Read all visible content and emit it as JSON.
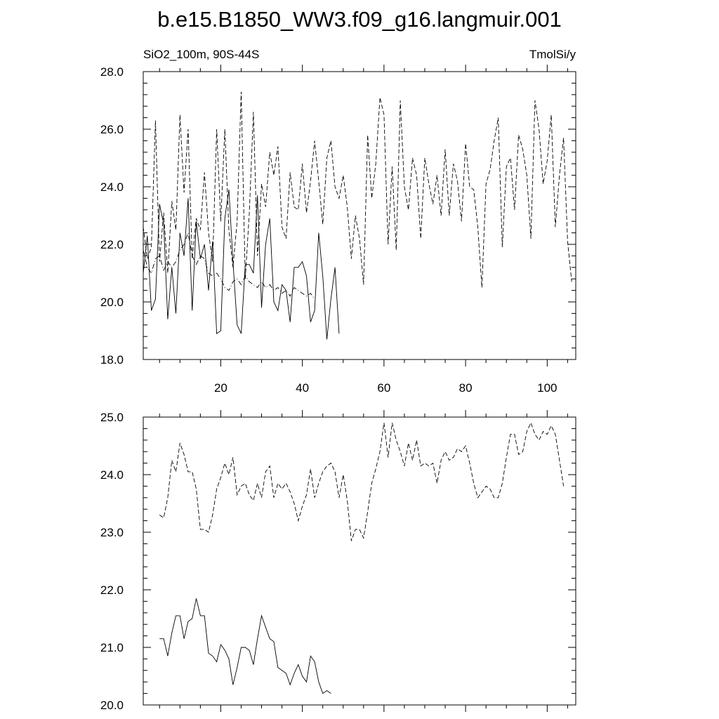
{
  "title": "b.e15.B1850_WW3.f09_g16.langmuir.001",
  "chart_data": [
    {
      "type": "line",
      "left_label": "SiO2_100m, 90S-44S",
      "right_label": "TmolSi/y",
      "xlim": [
        1,
        107
      ],
      "ylim": [
        18,
        28
      ],
      "xticks": [
        20,
        40,
        60,
        80,
        100
      ],
      "xtick_labels": [
        "20",
        "40",
        "60",
        "80",
        "100"
      ],
      "yticks": [
        18,
        20,
        22,
        24,
        26,
        28
      ],
      "ytick_labels": [
        "18.0",
        "20.0",
        "22.0",
        "24.0",
        "26.0",
        "28.0"
      ],
      "grid": false,
      "series": [
        {
          "style": "solid",
          "x_start": 1,
          "values": [
            21.0,
            22.3,
            19.7,
            20.1,
            23.4,
            22.7,
            19.4,
            21.2,
            19.6,
            22.4,
            21.6,
            23.6,
            19.7,
            22.8,
            21.5,
            22.0,
            20.4,
            22.1,
            18.9,
            19.0,
            22.9,
            23.9,
            21.4,
            19.2,
            18.9,
            21.3,
            21.3,
            21.0,
            23.7,
            19.8,
            22.0,
            22.9,
            20.0,
            19.7,
            20.6,
            20.4,
            19.3,
            21.2,
            21.2,
            21.4,
            20.9,
            19.3,
            19.7,
            22.4,
            20.9,
            18.7,
            20.1,
            21.2,
            18.9
          ]
        },
        {
          "style": "dashed",
          "x_start": 1,
          "values": [
            22.6,
            21.5,
            21.9,
            26.3,
            21.4,
            23.1,
            21.0,
            23.5,
            22.5,
            26.5,
            23.8,
            26.0,
            21.5,
            22.9,
            22.5,
            24.5,
            22.4,
            21.4,
            26.0,
            22.8,
            26.0,
            22.5,
            21.2,
            22.8,
            27.3,
            20.8,
            23.1,
            26.6,
            21.6,
            24.1,
            23.3,
            25.2,
            24.4,
            25.4,
            22.6,
            22.2,
            24.5,
            23.3,
            23.2,
            24.8,
            23.1,
            24.2,
            25.6,
            24.2,
            22.7,
            25.0,
            25.6,
            24.0,
            23.6,
            24.4,
            23.3,
            21.5,
            23.0,
            22.2,
            20.6,
            25.8,
            23.6,
            24.8,
            27.1,
            26.5,
            22.0,
            24.7,
            21.8,
            27.0,
            24.0,
            23.2,
            25.0,
            24.4,
            22.2,
            25.0,
            24.1,
            23.4,
            24.4,
            23.0,
            25.3,
            23.0,
            24.8,
            24.2,
            22.8,
            25.5,
            24.0,
            23.9,
            22.6,
            20.5,
            24.1,
            24.6,
            25.6,
            26.4,
            21.9,
            24.7,
            25.0,
            23.2,
            25.8,
            25.3,
            24.4,
            22.2,
            27.0,
            26.0,
            24.1,
            24.9,
            26.5,
            22.6,
            24.4,
            25.7,
            22.1,
            20.7
          ]
        },
        {
          "style": "dash-dot",
          "x_start": 1,
          "values": [
            21.8,
            21.2,
            21.0,
            21.5,
            21.6,
            21.1,
            21.4,
            21.2,
            21.4,
            21.8,
            22.0,
            22.4,
            21.6,
            21.3,
            21.6,
            21.5,
            21.0,
            20.9,
            21.0,
            20.8,
            20.5,
            20.4,
            20.7,
            20.8,
            20.6,
            20.9,
            20.7,
            20.6,
            20.5,
            20.7,
            20.5,
            20.6,
            20.4,
            20.5,
            20.3,
            20.4,
            20.2,
            20.5,
            20.4,
            20.3,
            20.2,
            20.3,
            20.1
          ]
        }
      ]
    },
    {
      "type": "line",
      "xlim": [
        1,
        107
      ],
      "ylim": [
        20,
        25
      ],
      "xticks": [
        20,
        40,
        60,
        80,
        100
      ],
      "yticks": [
        20,
        21,
        22,
        23,
        24,
        25
      ],
      "ytick_labels": [
        "20.0",
        "21.0",
        "22.0",
        "23.0",
        "24.0",
        "25.0"
      ],
      "grid": false,
      "series": [
        {
          "style": "dashed",
          "x_start": 5,
          "values": [
            23.3,
            23.25,
            23.6,
            24.25,
            24.05,
            24.55,
            24.35,
            24.05,
            24.05,
            23.75,
            23.05,
            23.05,
            23.0,
            23.3,
            23.75,
            23.95,
            24.2,
            24.0,
            24.3,
            23.65,
            23.8,
            23.85,
            23.65,
            23.55,
            23.85,
            23.6,
            24.05,
            24.15,
            23.6,
            23.85,
            23.75,
            23.85,
            23.7,
            23.5,
            23.2,
            23.45,
            23.65,
            24.1,
            23.6,
            23.85,
            24.05,
            24.15,
            24.2,
            24.05,
            23.6,
            24.0,
            23.55,
            22.85,
            23.05,
            23.05,
            22.9,
            23.35,
            23.85,
            24.1,
            24.4,
            24.9,
            24.3,
            24.9,
            24.6,
            24.4,
            24.15,
            24.55,
            24.25,
            24.6,
            24.15,
            24.2,
            24.15,
            24.2,
            23.85,
            24.25,
            24.4,
            24.25,
            24.3,
            24.45,
            24.4,
            24.5,
            24.2,
            23.85,
            23.6,
            23.7,
            23.8,
            23.75,
            23.6,
            23.6,
            23.85,
            24.3,
            24.7,
            24.7,
            24.35,
            24.4,
            24.75,
            24.9,
            24.7,
            24.6,
            24.75,
            24.7,
            24.85,
            24.7,
            24.25,
            23.8
          ]
        },
        {
          "style": "solid",
          "x_start": 5,
          "values": [
            21.15,
            21.15,
            20.85,
            21.25,
            21.55,
            21.55,
            21.15,
            21.45,
            21.5,
            21.85,
            21.55,
            21.55,
            20.9,
            20.85,
            20.75,
            21.05,
            20.95,
            20.8,
            20.35,
            20.65,
            21.0,
            21.0,
            20.95,
            20.7,
            21.15,
            21.55,
            21.35,
            21.15,
            21.1,
            20.65,
            20.6,
            20.55,
            20.35,
            20.55,
            20.7,
            20.5,
            20.4,
            20.85,
            20.75,
            20.4,
            20.2,
            20.25,
            20.2
          ]
        }
      ]
    }
  ]
}
